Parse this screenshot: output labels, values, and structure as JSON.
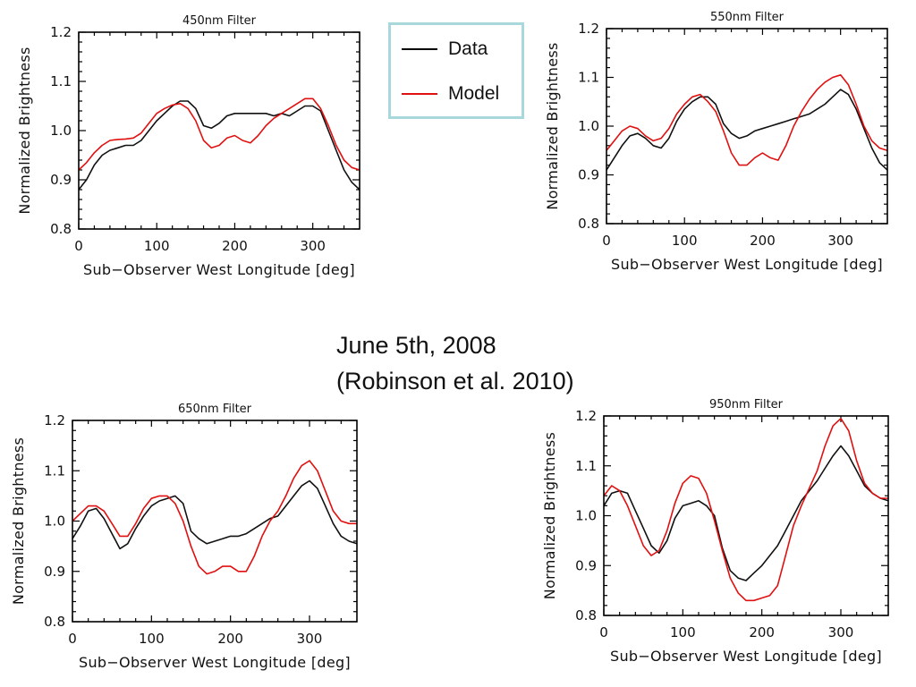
{
  "annotation": {
    "line1": "June 5th, 2008",
    "line2": "(Robinson et al. 2010)"
  },
  "legend": {
    "items": [
      {
        "label": "Data",
        "color": "#000000"
      },
      {
        "label": "Model",
        "color": "#e01010"
      }
    ]
  },
  "chart_data": [
    {
      "type": "line",
      "title": "450nm Filter",
      "xlabel": "Sub−Observer West Longitude [deg]",
      "ylabel": "Normalized Brightness",
      "xlim": [
        0,
        360
      ],
      "ylim": [
        0.8,
        1.2
      ],
      "xticks": [
        0,
        100,
        200,
        300
      ],
      "yticks": [
        0.8,
        0.9,
        1.0,
        1.1,
        1.2
      ],
      "series": [
        {
          "name": "Data",
          "color": "#111111",
          "x": [
            0,
            10,
            20,
            30,
            40,
            50,
            60,
            70,
            80,
            90,
            100,
            110,
            120,
            130,
            140,
            150,
            160,
            170,
            180,
            190,
            200,
            210,
            220,
            230,
            240,
            250,
            260,
            270,
            280,
            290,
            300,
            310,
            320,
            330,
            340,
            350,
            360
          ],
          "y": [
            0.88,
            0.9,
            0.93,
            0.95,
            0.96,
            0.965,
            0.97,
            0.97,
            0.98,
            1.0,
            1.02,
            1.035,
            1.05,
            1.06,
            1.06,
            1.045,
            1.01,
            1.005,
            1.015,
            1.03,
            1.035,
            1.035,
            1.035,
            1.035,
            1.035,
            1.03,
            1.035,
            1.03,
            1.04,
            1.05,
            1.05,
            1.04,
            1.0,
            0.96,
            0.92,
            0.895,
            0.88
          ]
        },
        {
          "name": "Model",
          "color": "#e01010",
          "x": [
            0,
            10,
            20,
            30,
            40,
            50,
            60,
            70,
            80,
            90,
            100,
            110,
            120,
            130,
            140,
            150,
            160,
            170,
            180,
            190,
            200,
            210,
            220,
            230,
            240,
            250,
            260,
            270,
            280,
            290,
            300,
            310,
            320,
            330,
            340,
            350,
            360
          ],
          "y": [
            0.92,
            0.935,
            0.955,
            0.97,
            0.98,
            0.982,
            0.983,
            0.985,
            0.995,
            1.015,
            1.035,
            1.045,
            1.052,
            1.055,
            1.045,
            1.02,
            0.98,
            0.965,
            0.97,
            0.985,
            0.99,
            0.98,
            0.975,
            0.99,
            1.01,
            1.025,
            1.035,
            1.045,
            1.055,
            1.065,
            1.065,
            1.045,
            1.01,
            0.97,
            0.94,
            0.925,
            0.92
          ]
        }
      ]
    },
    {
      "type": "line",
      "title": "550nm Filter",
      "xlabel": "Sub−Observer West Longitude [deg]",
      "ylabel": "Normalized Brightness",
      "xlim": [
        0,
        360
      ],
      "ylim": [
        0.8,
        1.2
      ],
      "xticks": [
        0,
        100,
        200,
        300
      ],
      "yticks": [
        0.8,
        0.9,
        1.0,
        1.1,
        1.2
      ],
      "series": [
        {
          "name": "Data",
          "color": "#111111",
          "x": [
            0,
            10,
            20,
            30,
            40,
            50,
            60,
            70,
            80,
            90,
            100,
            110,
            120,
            130,
            140,
            150,
            160,
            170,
            180,
            190,
            200,
            210,
            220,
            230,
            240,
            250,
            260,
            270,
            280,
            290,
            300,
            310,
            320,
            330,
            340,
            350,
            360
          ],
          "y": [
            0.91,
            0.935,
            0.96,
            0.98,
            0.985,
            0.975,
            0.96,
            0.955,
            0.975,
            1.01,
            1.035,
            1.05,
            1.06,
            1.06,
            1.045,
            1.005,
            0.985,
            0.975,
            0.98,
            0.99,
            0.995,
            1.0,
            1.005,
            1.01,
            1.015,
            1.02,
            1.025,
            1.035,
            1.045,
            1.06,
            1.075,
            1.065,
            1.035,
            0.995,
            0.955,
            0.925,
            0.91
          ]
        },
        {
          "name": "Model",
          "color": "#e01010",
          "x": [
            0,
            10,
            20,
            30,
            40,
            50,
            60,
            70,
            80,
            90,
            100,
            110,
            120,
            130,
            140,
            150,
            160,
            170,
            180,
            190,
            200,
            210,
            220,
            230,
            240,
            250,
            260,
            270,
            280,
            290,
            300,
            310,
            320,
            330,
            340,
            350,
            360
          ],
          "y": [
            0.95,
            0.97,
            0.99,
            1.0,
            0.995,
            0.98,
            0.97,
            0.975,
            0.995,
            1.025,
            1.045,
            1.06,
            1.065,
            1.05,
            1.03,
            0.99,
            0.945,
            0.92,
            0.92,
            0.935,
            0.945,
            0.935,
            0.93,
            0.96,
            1.0,
            1.03,
            1.055,
            1.075,
            1.09,
            1.1,
            1.105,
            1.085,
            1.045,
            1.0,
            0.97,
            0.955,
            0.95
          ]
        }
      ]
    },
    {
      "type": "line",
      "title": "650nm Filter",
      "xlabel": "Sub−Observer West Longitude [deg]",
      "ylabel": "Normalized Brightness",
      "xlim": [
        0,
        360
      ],
      "ylim": [
        0.8,
        1.2
      ],
      "xticks": [
        0,
        100,
        200,
        300
      ],
      "yticks": [
        0.8,
        0.9,
        1.0,
        1.1,
        1.2
      ],
      "series": [
        {
          "name": "Data",
          "color": "#111111",
          "x": [
            0,
            10,
            20,
            30,
            40,
            50,
            60,
            70,
            80,
            90,
            100,
            110,
            120,
            130,
            140,
            150,
            160,
            170,
            180,
            190,
            200,
            210,
            220,
            230,
            240,
            250,
            260,
            270,
            280,
            290,
            300,
            310,
            320,
            330,
            340,
            350,
            360
          ],
          "y": [
            0.965,
            0.99,
            1.02,
            1.025,
            1.005,
            0.975,
            0.945,
            0.955,
            0.985,
            1.01,
            1.03,
            1.04,
            1.045,
            1.05,
            1.035,
            0.98,
            0.965,
            0.955,
            0.96,
            0.965,
            0.97,
            0.97,
            0.975,
            0.985,
            0.995,
            1.005,
            1.01,
            1.03,
            1.05,
            1.07,
            1.08,
            1.065,
            1.03,
            0.995,
            0.97,
            0.96,
            0.955
          ]
        },
        {
          "name": "Model",
          "color": "#e01010",
          "x": [
            0,
            10,
            20,
            30,
            40,
            50,
            60,
            70,
            80,
            90,
            100,
            110,
            120,
            130,
            140,
            150,
            160,
            170,
            180,
            190,
            200,
            210,
            220,
            230,
            240,
            250,
            260,
            270,
            280,
            290,
            300,
            310,
            320,
            330,
            340,
            350,
            360
          ],
          "y": [
            1.0,
            1.015,
            1.03,
            1.03,
            1.02,
            0.995,
            0.97,
            0.97,
            0.995,
            1.025,
            1.045,
            1.05,
            1.05,
            1.035,
            1.0,
            0.95,
            0.91,
            0.895,
            0.9,
            0.91,
            0.91,
            0.9,
            0.9,
            0.93,
            0.97,
            1.0,
            1.02,
            1.05,
            1.085,
            1.11,
            1.12,
            1.1,
            1.06,
            1.02,
            1.0,
            0.995,
            0.995
          ]
        }
      ]
    },
    {
      "type": "line",
      "title": "950nm Filter",
      "xlabel": "Sub−Observer West Longitude [deg]",
      "ylabel": "Normalized Brightness",
      "xlim": [
        0,
        360
      ],
      "ylim": [
        0.8,
        1.2
      ],
      "xticks": [
        0,
        100,
        200,
        300
      ],
      "yticks": [
        0.8,
        0.9,
        1.0,
        1.1,
        1.2
      ],
      "series": [
        {
          "name": "Data",
          "color": "#111111",
          "x": [
            0,
            10,
            20,
            30,
            40,
            50,
            60,
            70,
            80,
            90,
            100,
            110,
            120,
            130,
            140,
            150,
            160,
            170,
            180,
            190,
            200,
            210,
            220,
            230,
            240,
            250,
            260,
            270,
            280,
            290,
            300,
            310,
            320,
            330,
            340,
            350,
            360
          ],
          "y": [
            1.02,
            1.045,
            1.05,
            1.045,
            1.01,
            0.975,
            0.94,
            0.925,
            0.95,
            0.995,
            1.02,
            1.025,
            1.03,
            1.02,
            1.0,
            0.935,
            0.89,
            0.875,
            0.87,
            0.885,
            0.9,
            0.92,
            0.94,
            0.97,
            1.0,
            1.03,
            1.05,
            1.07,
            1.095,
            1.12,
            1.14,
            1.12,
            1.09,
            1.06,
            1.045,
            1.035,
            1.03
          ]
        },
        {
          "name": "Model",
          "color": "#e01010",
          "x": [
            0,
            10,
            20,
            30,
            40,
            50,
            60,
            70,
            80,
            90,
            100,
            110,
            120,
            130,
            140,
            150,
            160,
            170,
            180,
            190,
            200,
            210,
            220,
            230,
            240,
            250,
            260,
            270,
            280,
            290,
            300,
            310,
            320,
            330,
            340,
            350,
            360
          ],
          "y": [
            1.04,
            1.06,
            1.05,
            1.02,
            0.98,
            0.94,
            0.92,
            0.93,
            0.97,
            1.025,
            1.065,
            1.08,
            1.075,
            1.045,
            0.99,
            0.93,
            0.875,
            0.845,
            0.83,
            0.83,
            0.835,
            0.84,
            0.86,
            0.92,
            0.98,
            1.02,
            1.055,
            1.09,
            1.14,
            1.18,
            1.195,
            1.17,
            1.11,
            1.065,
            1.045,
            1.035,
            1.035
          ]
        }
      ]
    }
  ]
}
